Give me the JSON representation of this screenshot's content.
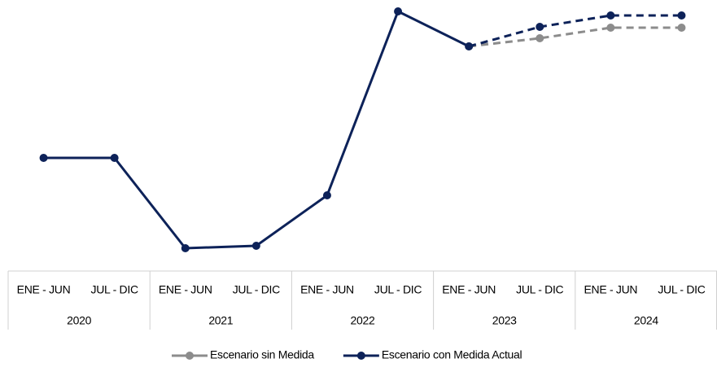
{
  "chart_data": {
    "type": "line",
    "categories": [
      "ENE - JUN",
      "JUL - DIC",
      "ENE - JUN",
      "JUL - DIC",
      "ENE - JUN",
      "JUL - DIC",
      "ENE - JUN",
      "JUL - DIC",
      "ENE - JUN",
      "JUL - DIC"
    ],
    "groups": [
      "2020",
      "2021",
      "2022",
      "2023",
      "2024"
    ],
    "series": [
      {
        "name": "Escenario sin Medida",
        "color": "#8c8c8c",
        "dashed_after": 6,
        "values": [
          null,
          null,
          null,
          null,
          null,
          null,
          263,
          273,
          286,
          286
        ]
      },
      {
        "name": "Escenario con Medida Actual",
        "color": "#0d2259",
        "dashed_after": 6,
        "values": [
          126,
          126,
          15,
          18,
          80,
          306,
          263,
          287,
          301,
          301
        ]
      }
    ],
    "ylim": [
      0,
      320
    ],
    "legend": "bottom"
  }
}
